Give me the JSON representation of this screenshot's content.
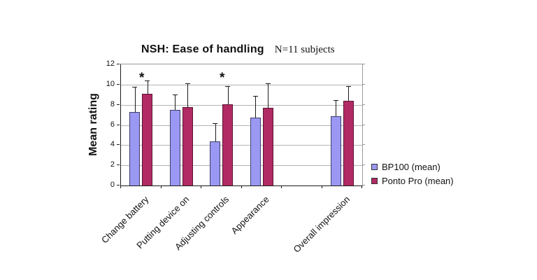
{
  "chart_data": {
    "type": "bar",
    "title": "NSH: Ease of handling",
    "subtitle": "N=11 subjects",
    "ylabel": "Mean rating",
    "xlabel": "",
    "ylim": [
      0,
      12
    ],
    "yticks": [
      0,
      2,
      4,
      6,
      8,
      10,
      12
    ],
    "grid": true,
    "legend_position": "right-middle",
    "categories": [
      "Change battery",
      "Putting device on",
      "Adjusting controls",
      "Appearance",
      "Overall impression"
    ],
    "gap_before_last_category": true,
    "series": [
      {
        "name": "BP100 (mean)",
        "color": "#9A98F2",
        "border_color": "#3E3E68",
        "values": [
          7.25,
          7.5,
          4.4,
          6.75,
          6.85
        ],
        "error_upper": [
          2.55,
          1.5,
          1.8,
          2.15,
          1.6
        ]
      },
      {
        "name": "Ponto Pro (mean)",
        "color": "#B12A63",
        "border_color": "#5A1535",
        "values": [
          9.1,
          7.75,
          8.05,
          7.7,
          8.4
        ],
        "error_upper": [
          1.3,
          2.35,
          1.8,
          2.45,
          1.45
        ]
      }
    ],
    "significance_marker": "*",
    "significant_category_indices": [
      0,
      2
    ],
    "colors": {
      "background": "#FFFFFF",
      "gridline": "#B3B3B3",
      "axis": "#1A1A1A",
      "frame": "#999999",
      "error_bar": "#1A1A1A",
      "text": "#111111"
    }
  }
}
